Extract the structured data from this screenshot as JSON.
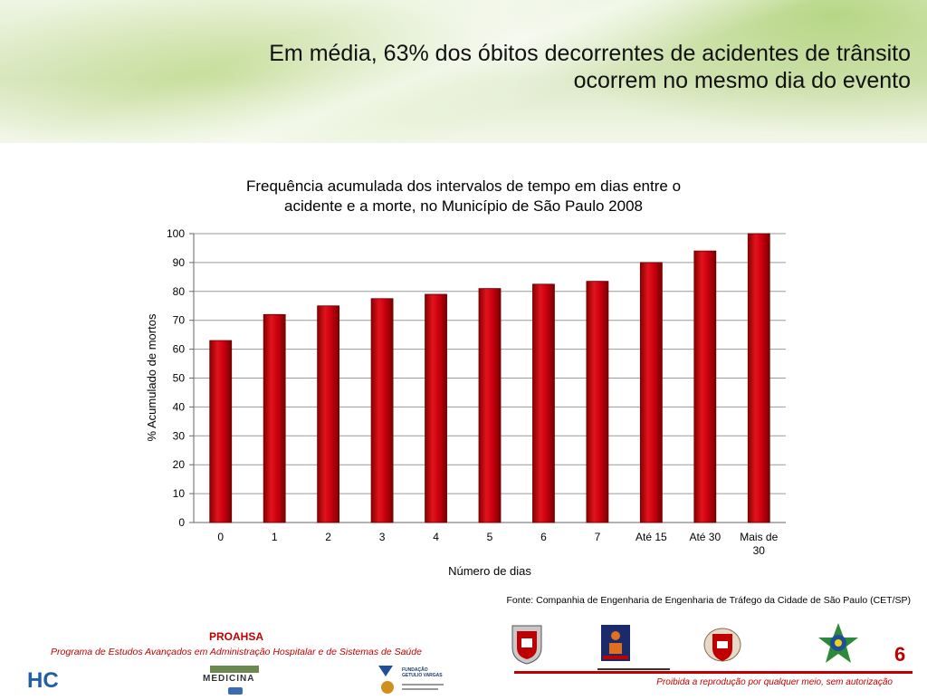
{
  "slide": {
    "title_line1": "Em média, 63% dos óbitos decorrentes de acidentes de trânsito",
    "title_line2": "ocorrem no mesmo dia do evento"
  },
  "chart_data": {
    "type": "bar",
    "title_line1": "Frequência acumulada dos intervalos de tempo em dias entre o",
    "title_line2": "acidente e a morte, no Município de São Paulo 2008",
    "xlabel": "Número de dias",
    "ylabel": "% Acumulado de mortos",
    "categories": [
      "0",
      "1",
      "2",
      "3",
      "4",
      "5",
      "6",
      "7",
      "Até 15",
      "Até 30",
      "Mais de 30"
    ],
    "category_lines": [
      [
        "0"
      ],
      [
        "1"
      ],
      [
        "2"
      ],
      [
        "3"
      ],
      [
        "4"
      ],
      [
        "5"
      ],
      [
        "6"
      ],
      [
        "7"
      ],
      [
        "Até 15"
      ],
      [
        "Até 30"
      ],
      [
        "Mais de",
        "30"
      ]
    ],
    "values": [
      63,
      72,
      75,
      77.5,
      79,
      81,
      82.5,
      83.5,
      90,
      94,
      100
    ],
    "ylim": [
      0,
      100
    ],
    "yticks": [
      "0",
      "10",
      "20",
      "30",
      "40",
      "50",
      "60",
      "70",
      "80",
      "90",
      "100"
    ],
    "grid": true,
    "bar_color": "#c00000"
  },
  "source": "Fonte: Companhia de Engenharia de  Engenharia de Tráfego da Cidade de São Paulo (CET/SP)",
  "footer": {
    "org": "PROAHSA",
    "program": "Programa de Estudos Avançados em Administração Hospitalar e de Sistemas de Saúde",
    "page_number": "6",
    "notice": "Proibida a reprodução por qualquer meio, sem autorização",
    "hc_logo_text": "HC",
    "medicina_logo_text": "MEDICINA",
    "fgv_logo_text": "FUNDAÇÃO GETULIO VARGAS",
    "accent_color": "#c00000"
  }
}
